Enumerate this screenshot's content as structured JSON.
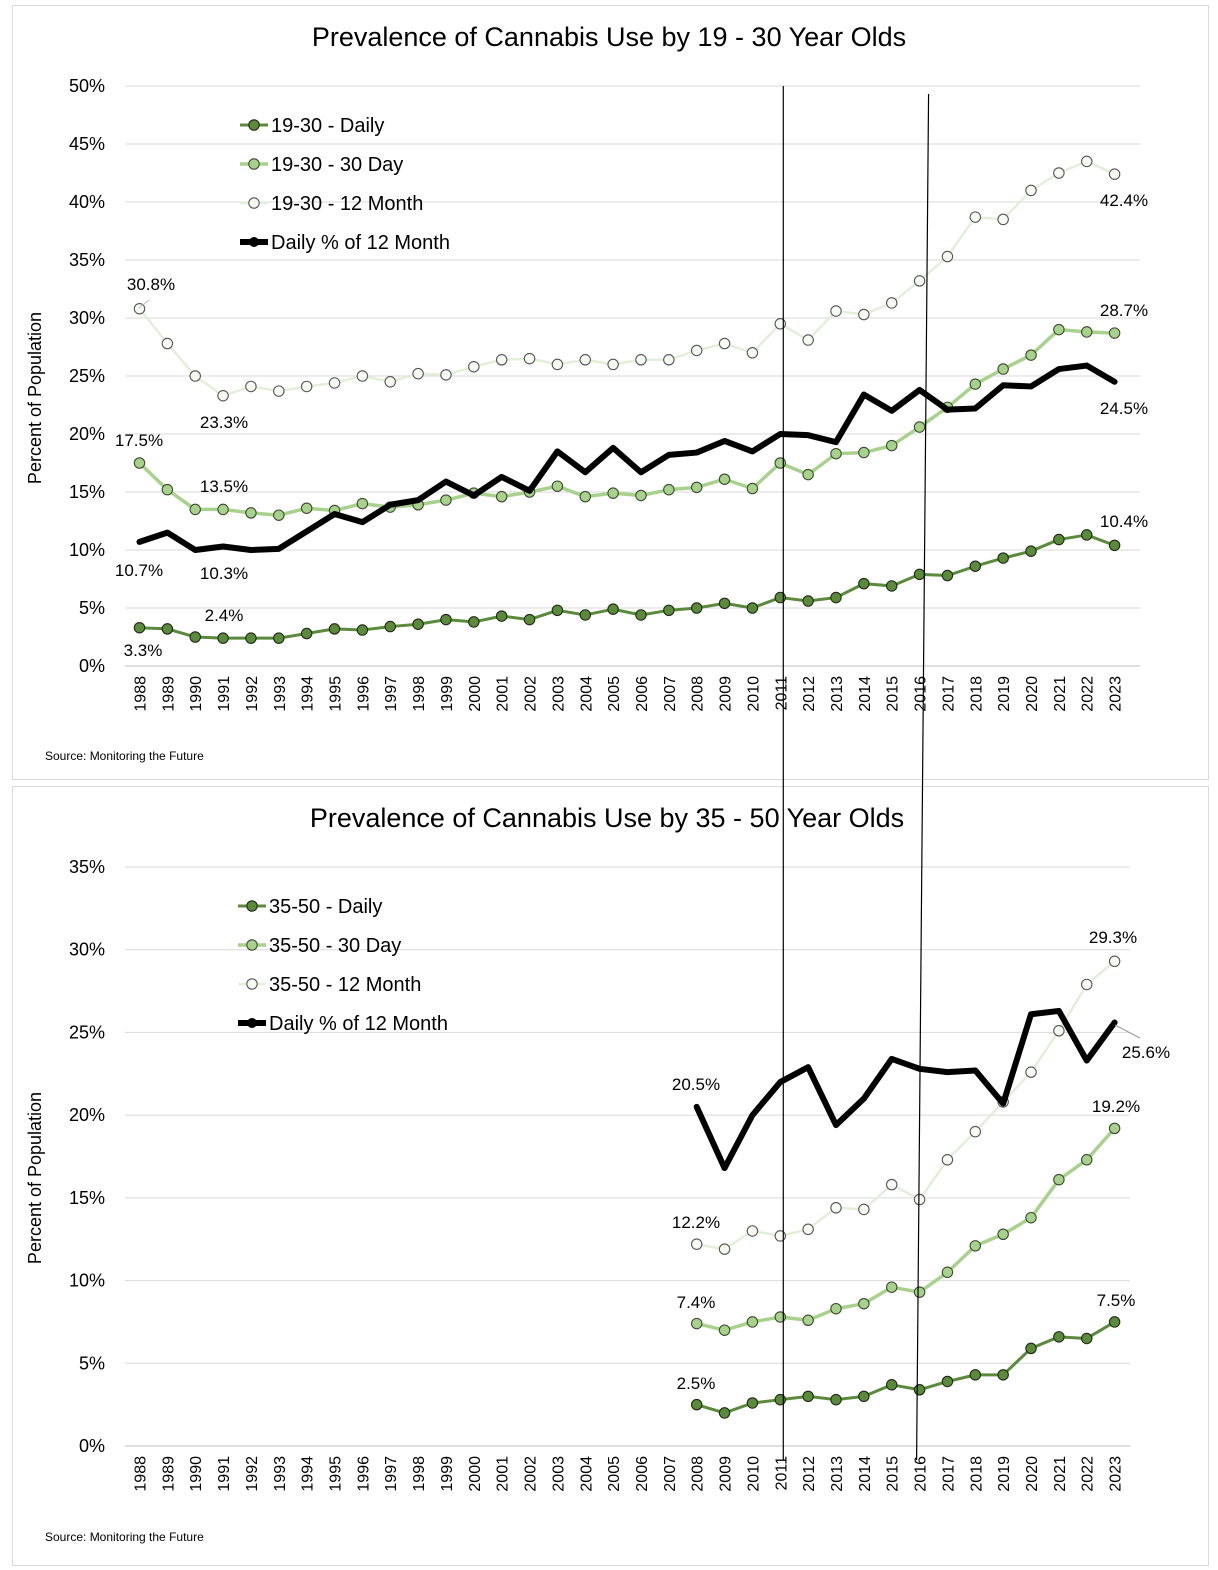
{
  "chart_data": [
    {
      "type": "line",
      "title": "Prevalence of Cannabis Use by 19 - 30 Year Olds",
      "ylabel": "Percent of Population",
      "source": "Source: Monitoring the Future",
      "ylim": [
        0,
        50
      ],
      "y_ticks": [
        "0%",
        "5%",
        "10%",
        "15%",
        "20%",
        "25%",
        "30%",
        "35%",
        "40%",
        "45%",
        "50%"
      ],
      "x": [
        "1988",
        "1989",
        "1990",
        "1991",
        "1992",
        "1993",
        "1994",
        "1995",
        "1996",
        "1997",
        "1998",
        "1999",
        "2000",
        "2001",
        "2002",
        "2003",
        "2004",
        "2005",
        "2006",
        "2007",
        "2008",
        "2009",
        "2010",
        "2011",
        "2012",
        "2013",
        "2014",
        "2015",
        "2016",
        "2017",
        "2018",
        "2019",
        "2020",
        "2021",
        "2022",
        "2023"
      ],
      "vertical_markers": [
        "2011",
        "2016"
      ],
      "legend_position": "top-left",
      "grid": true,
      "series": [
        {
          "name": "19-30 - Daily",
          "color": "#5b8a3c",
          "values": [
            3.3,
            3.2,
            2.5,
            2.4,
            2.4,
            2.4,
            2.8,
            3.2,
            3.1,
            3.4,
            3.6,
            4.0,
            3.8,
            4.3,
            4.0,
            4.8,
            4.4,
            4.9,
            4.4,
            4.8,
            5.0,
            5.4,
            5.0,
            5.9,
            5.6,
            5.9,
            7.1,
            6.9,
            7.9,
            7.8,
            8.6,
            9.3,
            9.9,
            10.9,
            11.3,
            10.4
          ]
        },
        {
          "name": "19-30 - 30 Day",
          "color": "#a9d18e",
          "values": [
            17.5,
            15.2,
            13.5,
            13.5,
            13.2,
            13.0,
            13.6,
            13.4,
            14.0,
            13.7,
            13.9,
            14.3,
            14.9,
            14.6,
            15.0,
            15.5,
            14.6,
            14.9,
            14.7,
            15.2,
            15.4,
            16.1,
            15.3,
            17.5,
            16.5,
            18.3,
            18.4,
            19.0,
            20.6,
            22.3,
            24.3,
            25.6,
            26.8,
            29.0,
            28.8,
            28.7
          ]
        },
        {
          "name": "19-30 - 12 Month",
          "color": "#e2efd9",
          "values": [
            30.8,
            27.8,
            25.0,
            23.3,
            24.1,
            23.7,
            24.1,
            24.4,
            25.0,
            24.5,
            25.2,
            25.1,
            25.8,
            26.4,
            26.5,
            26.0,
            26.4,
            26.0,
            26.4,
            26.4,
            27.2,
            27.8,
            27.0,
            29.5,
            28.1,
            30.6,
            30.3,
            31.3,
            33.2,
            35.3,
            38.7,
            38.5,
            41.0,
            42.5,
            43.5,
            42.4
          ]
        },
        {
          "name": "Daily % of 12 Month",
          "color": "#000000",
          "values": [
            10.7,
            11.5,
            10.0,
            10.3,
            10.0,
            10.1,
            11.6,
            13.1,
            12.4,
            13.9,
            14.3,
            15.9,
            14.7,
            16.3,
            15.1,
            18.5,
            16.7,
            18.8,
            16.7,
            18.2,
            18.4,
            19.4,
            18.5,
            20.0,
            19.9,
            19.3,
            23.4,
            22.0,
            23.8,
            22.1,
            22.2,
            24.2,
            24.1,
            25.6,
            25.9,
            24.5
          ]
        }
      ],
      "annotations": [
        {
          "label": "30.8%"
        },
        {
          "label": "23.3%"
        },
        {
          "label": "17.5%"
        },
        {
          "label": "13.5%"
        },
        {
          "label": "10.7%"
        },
        {
          "label": "10.3%"
        },
        {
          "label": "2.4%"
        },
        {
          "label": "3.3%"
        },
        {
          "label": "42.4%"
        },
        {
          "label": "28.7%"
        },
        {
          "label": "24.5%"
        },
        {
          "label": "10.4%"
        }
      ]
    },
    {
      "type": "line",
      "title": "Prevalence of Cannabis Use by 35 - 50 Year Olds",
      "ylabel": "Percent of Population",
      "source": "Source: Monitoring the Future",
      "ylim": [
        0,
        35
      ],
      "y_ticks": [
        "0%",
        "5%",
        "10%",
        "15%",
        "20%",
        "25%",
        "30%",
        "35%"
      ],
      "x": [
        "1988",
        "1989",
        "1990",
        "1991",
        "1992",
        "1993",
        "1994",
        "1995",
        "1996",
        "1997",
        "1998",
        "1999",
        "2000",
        "2001",
        "2002",
        "2003",
        "2004",
        "2005",
        "2006",
        "2007",
        "2008",
        "2009",
        "2010",
        "2011",
        "2012",
        "2013",
        "2014",
        "2015",
        "2016",
        "2017",
        "2018",
        "2019",
        "2020",
        "2021",
        "2022",
        "2023"
      ],
      "vertical_markers": [
        "2011",
        "2016"
      ],
      "legend_position": "top-left",
      "grid": true,
      "series": [
        {
          "name": "35-50 - Daily",
          "color": "#5b8a3c",
          "values": [
            null,
            null,
            null,
            null,
            null,
            null,
            null,
            null,
            null,
            null,
            null,
            null,
            null,
            null,
            null,
            null,
            null,
            null,
            null,
            null,
            2.5,
            2.0,
            2.6,
            2.8,
            3.0,
            2.8,
            3.0,
            3.7,
            3.4,
            3.9,
            4.3,
            4.3,
            5.9,
            6.6,
            6.5,
            7.5
          ]
        },
        {
          "name": "35-50 - 30 Day",
          "color": "#a9d18e",
          "values": [
            null,
            null,
            null,
            null,
            null,
            null,
            null,
            null,
            null,
            null,
            null,
            null,
            null,
            null,
            null,
            null,
            null,
            null,
            null,
            null,
            7.4,
            7.0,
            7.5,
            7.8,
            7.6,
            8.3,
            8.6,
            9.6,
            9.3,
            10.5,
            12.1,
            12.8,
            13.8,
            16.1,
            17.3,
            19.2
          ]
        },
        {
          "name": "35-50 - 12 Month",
          "color": "#e2efd9",
          "values": [
            null,
            null,
            null,
            null,
            null,
            null,
            null,
            null,
            null,
            null,
            null,
            null,
            null,
            null,
            null,
            null,
            null,
            null,
            null,
            null,
            12.2,
            11.9,
            13.0,
            12.7,
            13.1,
            14.4,
            14.3,
            15.8,
            14.9,
            17.3,
            19.0,
            20.8,
            22.6,
            25.1,
            27.9,
            29.3
          ]
        },
        {
          "name": "Daily % of 12 Month",
          "color": "#000000",
          "values": [
            null,
            null,
            null,
            null,
            null,
            null,
            null,
            null,
            null,
            null,
            null,
            null,
            null,
            null,
            null,
            null,
            null,
            null,
            null,
            null,
            20.5,
            16.8,
            20.0,
            22.0,
            22.9,
            19.4,
            21.0,
            23.4,
            22.8,
            22.6,
            22.7,
            20.7,
            26.1,
            26.3,
            23.3,
            25.6
          ]
        }
      ],
      "annotations": [
        {
          "label": "20.5%"
        },
        {
          "label": "12.2%"
        },
        {
          "label": "7.4%"
        },
        {
          "label": "2.5%"
        },
        {
          "label": "29.3%"
        },
        {
          "label": "25.6%"
        },
        {
          "label": "19.2%"
        },
        {
          "label": "7.5%"
        }
      ]
    }
  ]
}
